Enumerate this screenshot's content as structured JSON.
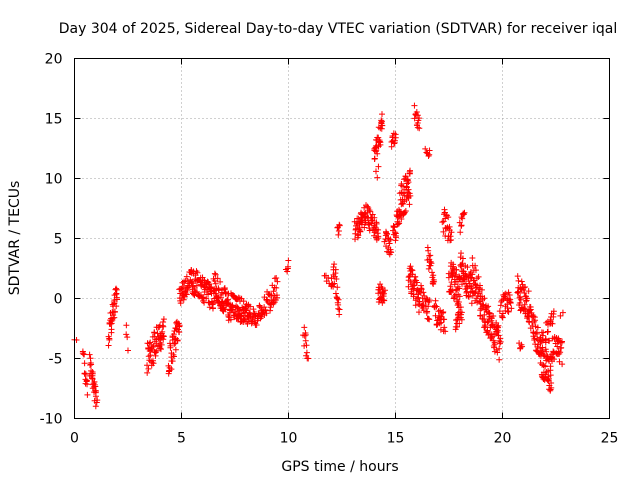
{
  "chart_data": {
    "type": "scatter",
    "title": "Day 304 of 2025, Sidereal Day-to-day VTEC variation (SDTVAR) for receiver iqal",
    "xlabel": "GPS time / hours",
    "ylabel": "SDTVAR / TECUs",
    "xlim": [
      0,
      25
    ],
    "ylim": [
      -10,
      20
    ],
    "xticks": [
      0,
      5,
      10,
      15,
      20,
      25
    ],
    "yticks": [
      -10,
      -5,
      0,
      5,
      10,
      15,
      20
    ],
    "xtick_labels": [
      "0",
      "5",
      "10",
      "15",
      "20",
      "25"
    ],
    "ytick_labels": [
      "-10",
      "-5",
      "0",
      "5",
      "10",
      "15",
      "20"
    ],
    "grid": true,
    "marker": "+",
    "color": "#ff0000",
    "segments": [
      {
        "x0": 0.0,
        "x1": 0.1,
        "y0": -3.4,
        "y1": -3.4,
        "n": 2,
        "noise": 0.1
      },
      {
        "x0": 0.4,
        "x1": 0.6,
        "y0": -4.5,
        "y1": -7.5,
        "n": 14,
        "noise": 0.8
      },
      {
        "x0": 0.7,
        "x1": 1.05,
        "y0": -5.5,
        "y1": -8.5,
        "n": 30,
        "noise": 1.0
      },
      {
        "x0": 1.6,
        "x1": 2.0,
        "y0": -3.0,
        "y1": 0.5,
        "n": 36,
        "noise": 1.2
      },
      {
        "x0": 2.4,
        "x1": 2.5,
        "y0": -2.5,
        "y1": -4.2,
        "n": 4,
        "noise": 0.5
      },
      {
        "x0": 3.4,
        "x1": 4.2,
        "y0": -5.0,
        "y1": -2.5,
        "n": 60,
        "noise": 1.3
      },
      {
        "x0": 4.4,
        "x1": 4.9,
        "y0": -5.5,
        "y1": -2.0,
        "n": 40,
        "noise": 1.3
      },
      {
        "x0": 4.9,
        "x1": 5.5,
        "y0": 0.0,
        "y1": 2.0,
        "n": 40,
        "noise": 0.8
      },
      {
        "x0": 5.5,
        "x1": 6.5,
        "y0": 1.5,
        "y1": 0.0,
        "n": 80,
        "noise": 1.1
      },
      {
        "x0": 6.5,
        "x1": 7.3,
        "y0": 1.2,
        "y1": -1.0,
        "n": 70,
        "noise": 1.1
      },
      {
        "x0": 7.3,
        "x1": 8.1,
        "y0": -0.5,
        "y1": -1.3,
        "n": 70,
        "noise": 1.0
      },
      {
        "x0": 8.1,
        "x1": 8.6,
        "y0": -1.0,
        "y1": -2.0,
        "n": 30,
        "noise": 0.8
      },
      {
        "x0": 8.6,
        "x1": 9.5,
        "y0": -1.5,
        "y1": 1.0,
        "n": 50,
        "noise": 1.0
      },
      {
        "x0": 9.9,
        "x1": 10.0,
        "y0": 2.5,
        "y1": 3.0,
        "n": 5,
        "noise": 0.4
      },
      {
        "x0": 10.7,
        "x1": 10.9,
        "y0": -2.8,
        "y1": -4.5,
        "n": 12,
        "noise": 0.8
      },
      {
        "x0": 11.7,
        "x1": 11.9,
        "y0": 2.0,
        "y1": 1.5,
        "n": 5,
        "noise": 0.3
      },
      {
        "x0": 12.0,
        "x1": 12.2,
        "y0": 0.5,
        "y1": 3.0,
        "n": 14,
        "noise": 1.0
      },
      {
        "x0": 12.2,
        "x1": 12.4,
        "y0": 1.0,
        "y1": -1.5,
        "n": 12,
        "noise": 1.0
      },
      {
        "x0": 12.3,
        "x1": 12.4,
        "y0": 5.5,
        "y1": 6.0,
        "n": 6,
        "noise": 0.4
      },
      {
        "x0": 13.1,
        "x1": 13.6,
        "y0": 5.5,
        "y1": 7.0,
        "n": 40,
        "noise": 0.9
      },
      {
        "x0": 13.6,
        "x1": 14.2,
        "y0": 7.0,
        "y1": 5.5,
        "n": 40,
        "noise": 0.9
      },
      {
        "x0": 14.0,
        "x1": 14.4,
        "y0": 12.0,
        "y1": 14.5,
        "n": 32,
        "noise": 1.0
      },
      {
        "x0": 14.1,
        "x1": 14.2,
        "y0": 10.5,
        "y1": 10.5,
        "n": 3,
        "noise": 0.6
      },
      {
        "x0": 14.2,
        "x1": 14.5,
        "y0": 0.5,
        "y1": 0.2,
        "n": 25,
        "noise": 0.8
      },
      {
        "x0": 14.5,
        "x1": 14.8,
        "y0": 5.0,
        "y1": 4.0,
        "n": 20,
        "noise": 0.8
      },
      {
        "x0": 14.8,
        "x1": 15.0,
        "y0": 13.0,
        "y1": 13.5,
        "n": 12,
        "noise": 0.5
      },
      {
        "x0": 14.9,
        "x1": 15.2,
        "y0": 5.0,
        "y1": 7.5,
        "n": 25,
        "noise": 1.0
      },
      {
        "x0": 15.2,
        "x1": 15.7,
        "y0": 8.0,
        "y1": 9.5,
        "n": 50,
        "noise": 1.6
      },
      {
        "x0": 15.6,
        "x1": 16.1,
        "y0": 2.0,
        "y1": 0.0,
        "n": 40,
        "noise": 1.2
      },
      {
        "x0": 15.9,
        "x1": 16.1,
        "y0": 15.5,
        "y1": 14.5,
        "n": 14,
        "noise": 0.6
      },
      {
        "x0": 16.1,
        "x1": 16.6,
        "y0": 0.5,
        "y1": -1.0,
        "n": 30,
        "noise": 1.0
      },
      {
        "x0": 16.4,
        "x1": 16.6,
        "y0": 12.5,
        "y1": 12.0,
        "n": 6,
        "noise": 0.4
      },
      {
        "x0": 16.5,
        "x1": 16.8,
        "y0": 3.5,
        "y1": 1.5,
        "n": 20,
        "noise": 1.0
      },
      {
        "x0": 16.8,
        "x1": 17.3,
        "y0": -1.0,
        "y1": -2.0,
        "n": 30,
        "noise": 1.0
      },
      {
        "x0": 17.2,
        "x1": 17.6,
        "y0": 6.5,
        "y1": 5.5,
        "n": 25,
        "noise": 1.1
      },
      {
        "x0": 17.5,
        "x1": 18.0,
        "y0": 2.0,
        "y1": 0.5,
        "n": 50,
        "noise": 1.4
      },
      {
        "x0": 17.8,
        "x1": 18.1,
        "y0": -2.0,
        "y1": -1.0,
        "n": 20,
        "noise": 0.8
      },
      {
        "x0": 18.0,
        "x1": 18.2,
        "y0": 6.0,
        "y1": 7.5,
        "n": 10,
        "noise": 0.8
      },
      {
        "x0": 18.0,
        "x1": 18.6,
        "y0": 3.0,
        "y1": 0.5,
        "n": 50,
        "noise": 1.4
      },
      {
        "x0": 18.6,
        "x1": 19.2,
        "y0": 2.0,
        "y1": -1.5,
        "n": 50,
        "noise": 1.4
      },
      {
        "x0": 19.2,
        "x1": 19.9,
        "y0": -1.5,
        "y1": -4.0,
        "n": 60,
        "noise": 1.4
      },
      {
        "x0": 19.9,
        "x1": 20.4,
        "y0": -1.0,
        "y1": 0.0,
        "n": 30,
        "noise": 1.0
      },
      {
        "x0": 20.7,
        "x1": 21.2,
        "y0": 0.5,
        "y1": -0.5,
        "n": 40,
        "noise": 1.4
      },
      {
        "x0": 20.8,
        "x1": 20.9,
        "y0": -4.0,
        "y1": -4.0,
        "n": 5,
        "noise": 0.3
      },
      {
        "x0": 21.2,
        "x1": 21.5,
        "y0": -1.0,
        "y1": -2.5,
        "n": 25,
        "noise": 1.0
      },
      {
        "x0": 21.5,
        "x1": 21.9,
        "y0": -3.0,
        "y1": -4.0,
        "n": 30,
        "noise": 1.2
      },
      {
        "x0": 21.8,
        "x1": 22.3,
        "y0": -5.0,
        "y1": -6.5,
        "n": 50,
        "noise": 1.6
      },
      {
        "x0": 22.0,
        "x1": 22.4,
        "y0": -3.0,
        "y1": -2.0,
        "n": 20,
        "noise": 1.0
      },
      {
        "x0": 22.3,
        "x1": 22.8,
        "y0": -4.0,
        "y1": -4.5,
        "n": 30,
        "noise": 1.0
      },
      {
        "x0": 22.7,
        "x1": 22.8,
        "y0": -1.3,
        "y1": -1.3,
        "n": 2,
        "noise": 0.2
      }
    ]
  }
}
